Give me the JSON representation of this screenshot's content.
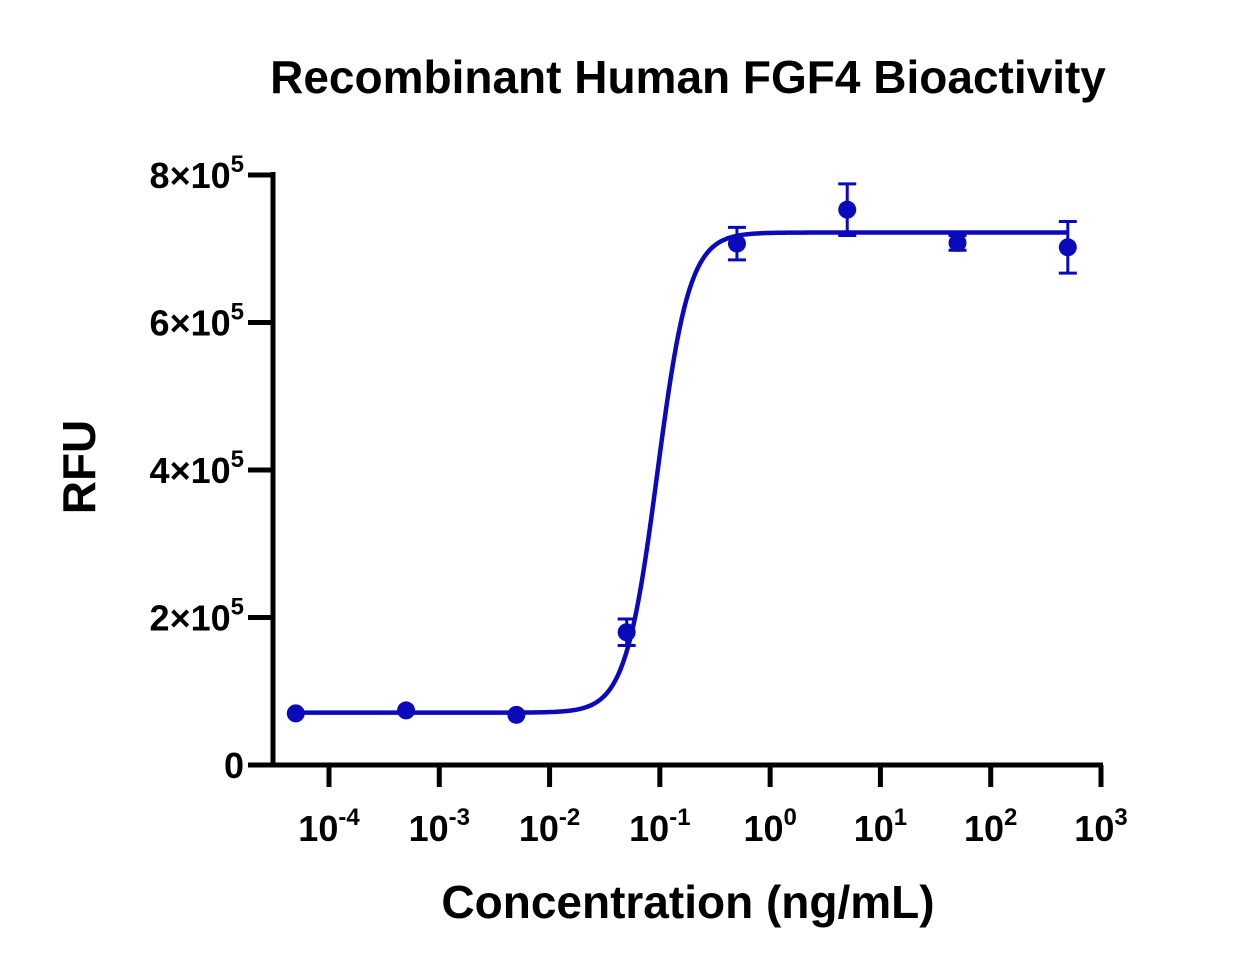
{
  "chart_data": {
    "type": "scatter",
    "title": "Recombinant Human FGF4 Bioactivity",
    "xlabel": "Concentration (ng/mL)",
    "ylabel": "RFU",
    "x_scale": "log",
    "xlim": [
      0.0001,
      1000
    ],
    "ylim": [
      0,
      800000
    ],
    "x_ticks": [
      {
        "base": "10",
        "exp": "-4",
        "value": 0.0001
      },
      {
        "base": "10",
        "exp": "-3",
        "value": 0.001
      },
      {
        "base": "10",
        "exp": "-2",
        "value": 0.01
      },
      {
        "base": "10",
        "exp": "-1",
        "value": 0.1
      },
      {
        "base": "10",
        "exp": "0",
        "value": 1
      },
      {
        "base": "10",
        "exp": "1",
        "value": 10
      },
      {
        "base": "10",
        "exp": "2",
        "value": 100
      },
      {
        "base": "10",
        "exp": "3",
        "value": 1000
      }
    ],
    "y_ticks": [
      {
        "text": "0",
        "exp": "",
        "value": 0
      },
      {
        "text": "2×10",
        "exp": "5",
        "value": 200000
      },
      {
        "text": "4×10",
        "exp": "5",
        "value": 400000
      },
      {
        "text": "6×10",
        "exp": "5",
        "value": 600000
      },
      {
        "text": "8×10",
        "exp": "5",
        "value": 800000
      }
    ],
    "color": "#0a0aba",
    "grid": false,
    "series": [
      {
        "points": [
          {
            "x": 5e-05,
            "y": 70000,
            "err": 0
          },
          {
            "x": 0.0005,
            "y": 74000,
            "err": 0
          },
          {
            "x": 0.005,
            "y": 68000,
            "err": 0
          },
          {
            "x": 0.05,
            "y": 180000,
            "err": 18000
          },
          {
            "x": 0.5,
            "y": 707000,
            "err": 22000
          },
          {
            "x": 5,
            "y": 753000,
            "err": 35000
          },
          {
            "x": 50,
            "y": 708000,
            "err": 10000
          },
          {
            "x": 500,
            "y": 702000,
            "err": 35000
          }
        ],
        "fit": {
          "model": "4PL",
          "bottom": 71000,
          "top": 722000,
          "ec50": 0.095,
          "hill": 3.0
        }
      }
    ]
  }
}
